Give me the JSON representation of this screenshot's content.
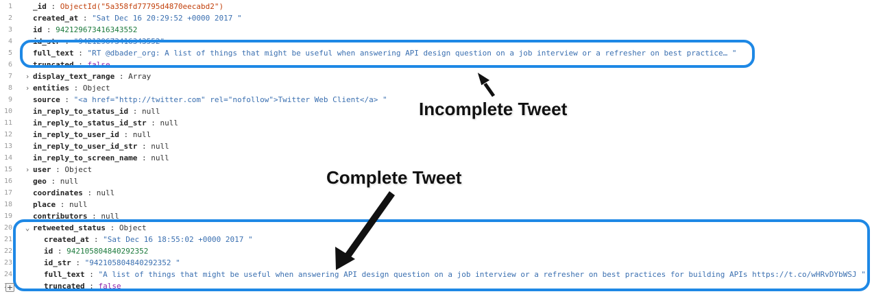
{
  "lines": [
    {
      "n": "1",
      "key": "_id",
      "val": "ObjectId(\"5a358fd77795d4870eecabd2\")",
      "vtype": "oid"
    },
    {
      "n": "2",
      "key": "created_at",
      "val": "\"Sat Dec 16 20:29:52 +0000 2017 \"",
      "vtype": "str"
    },
    {
      "n": "3",
      "key": "id",
      "val": "942129673416343552",
      "vtype": "num"
    },
    {
      "n": "4",
      "key": "id_str",
      "val": "\"942129673416343552\"",
      "vtype": "str"
    },
    {
      "n": "5",
      "key": "full_text",
      "val": "\"RT @dbader_org: A list of things that might be useful when answering API design question on a job interview or a refresher on best practice… \"",
      "vtype": "str"
    },
    {
      "n": "6",
      "key": "truncated",
      "val": "false",
      "vtype": "bool"
    },
    {
      "n": "7",
      "key": "display_text_range",
      "val": "Array",
      "vtype": "typ",
      "arrow": "›"
    },
    {
      "n": "8",
      "key": "entities",
      "val": "Object",
      "vtype": "typ",
      "arrow": "›"
    },
    {
      "n": "9",
      "key": "source",
      "val": "\"<a href=\"http://twitter.com\" rel=\"nofollow\">Twitter Web Client</a> \"",
      "vtype": "str"
    },
    {
      "n": "10",
      "key": "in_reply_to_status_id",
      "val": "null",
      "vtype": "nul"
    },
    {
      "n": "11",
      "key": "in_reply_to_status_id_str",
      "val": "null",
      "vtype": "nul"
    },
    {
      "n": "12",
      "key": "in_reply_to_user_id",
      "val": "null",
      "vtype": "nul"
    },
    {
      "n": "13",
      "key": "in_reply_to_user_id_str",
      "val": "null",
      "vtype": "nul"
    },
    {
      "n": "14",
      "key": "in_reply_to_screen_name",
      "val": "null",
      "vtype": "nul"
    },
    {
      "n": "15",
      "key": "user",
      "val": "Object",
      "vtype": "typ",
      "arrow": "›"
    },
    {
      "n": "16",
      "key": "geo",
      "val": "null",
      "vtype": "nul"
    },
    {
      "n": "17",
      "key": "coordinates",
      "val": "null",
      "vtype": "nul"
    },
    {
      "n": "18",
      "key": "place",
      "val": "null",
      "vtype": "nul"
    },
    {
      "n": "19",
      "key": "contributors",
      "val": "null",
      "vtype": "nul"
    },
    {
      "n": "20",
      "key": "retweeted_status",
      "val": "Object",
      "vtype": "typ",
      "arrow": "⌄"
    },
    {
      "n": "21",
      "key": "created_at",
      "val": "\"Sat Dec 16 18:55:02 +0000 2017 \"",
      "vtype": "str",
      "indent": 1
    },
    {
      "n": "22",
      "key": "id",
      "val": "942105804840292352",
      "vtype": "num",
      "indent": 1
    },
    {
      "n": "23",
      "key": "id_str",
      "val": "\"942105804840292352 \"",
      "vtype": "str",
      "indent": 1
    },
    {
      "n": "24",
      "key": "full_text",
      "val": "\"A list of things that might be useful when answering API design question on a job interview or a refresher on best practices for building APIs https://t.co/wHRvDYbWSJ \"",
      "vtype": "str",
      "indent": 1
    },
    {
      "n": "25",
      "key": "truncated",
      "val": "false",
      "vtype": "bool",
      "indent": 1
    }
  ],
  "annotations": {
    "incomplete": "Incomplete Tweet",
    "complete": "Complete Tweet"
  },
  "add_button": "+",
  "colors": {
    "highlight": "#1e88e5",
    "string": "#3a6fb0",
    "number": "#1c7a3c",
    "objectid": "#c2410c",
    "bool": "#8e24aa"
  }
}
